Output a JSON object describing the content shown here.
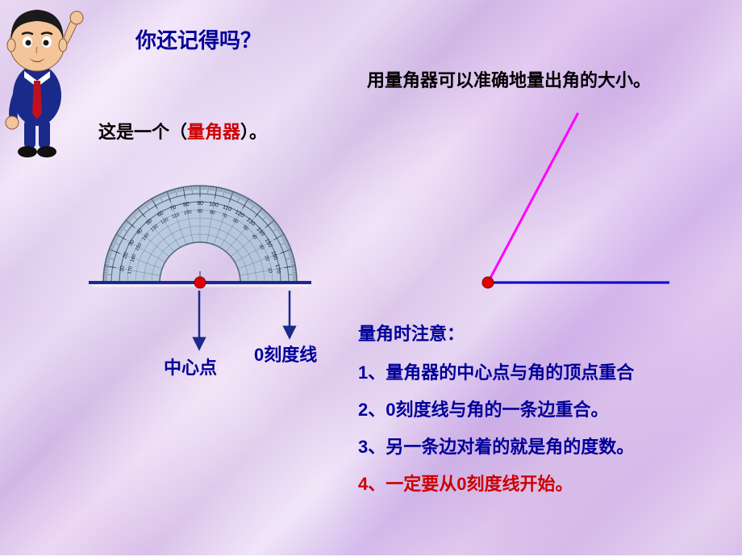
{
  "title": {
    "text": "你还记得吗？",
    "color": "#000099"
  },
  "this_is": {
    "prefix": "这是一个（",
    "keyword": "量角器",
    "suffix": "）。",
    "keyword_color": "#cc0000",
    "normal_color": "#000000"
  },
  "top_right": {
    "text": "用量角器可以准确地量出角的大小。",
    "color": "#000000"
  },
  "protractor": {
    "outer_numbers": [
      "10",
      "20",
      "30",
      "40",
      "50",
      "60",
      "70",
      "80",
      "90",
      "100",
      "110",
      "120",
      "130",
      "140",
      "150",
      "160",
      "170"
    ],
    "inner_numbers": [
      "170",
      "160",
      "150",
      "140",
      "130",
      "120",
      "110",
      "100",
      "90",
      "80",
      "70",
      "60",
      "50",
      "40",
      "30",
      "20",
      "10"
    ],
    "body_color": "#a8c4d8",
    "edge_color": "#506880",
    "baseline_color": "#1a2a8a",
    "dot_color": "#e00000",
    "arrow_color": "#1a2a8a"
  },
  "labels": {
    "center_point": "中心点",
    "zero_line": "0刻度线"
  },
  "angle": {
    "vertex_color": "#e00000",
    "base_color": "#0000cc",
    "ray_color": "#ff00ff",
    "angle_deg": 62
  },
  "notes": {
    "title": "量角时注意：",
    "title_color": "#000099",
    "line1": {
      "text": "1、量角器的中心点与角的顶点重合",
      "color": "#000099"
    },
    "line2": {
      "text": "2、0刻度线与角的一条边重合。",
      "color": "#000099"
    },
    "line3": {
      "text": "3、另一条边对着的就是角的度数。",
      "color": "#000099"
    },
    "line4": {
      "text": "4、一定要从0刻度线开始。",
      "color": "#cc0000"
    }
  }
}
